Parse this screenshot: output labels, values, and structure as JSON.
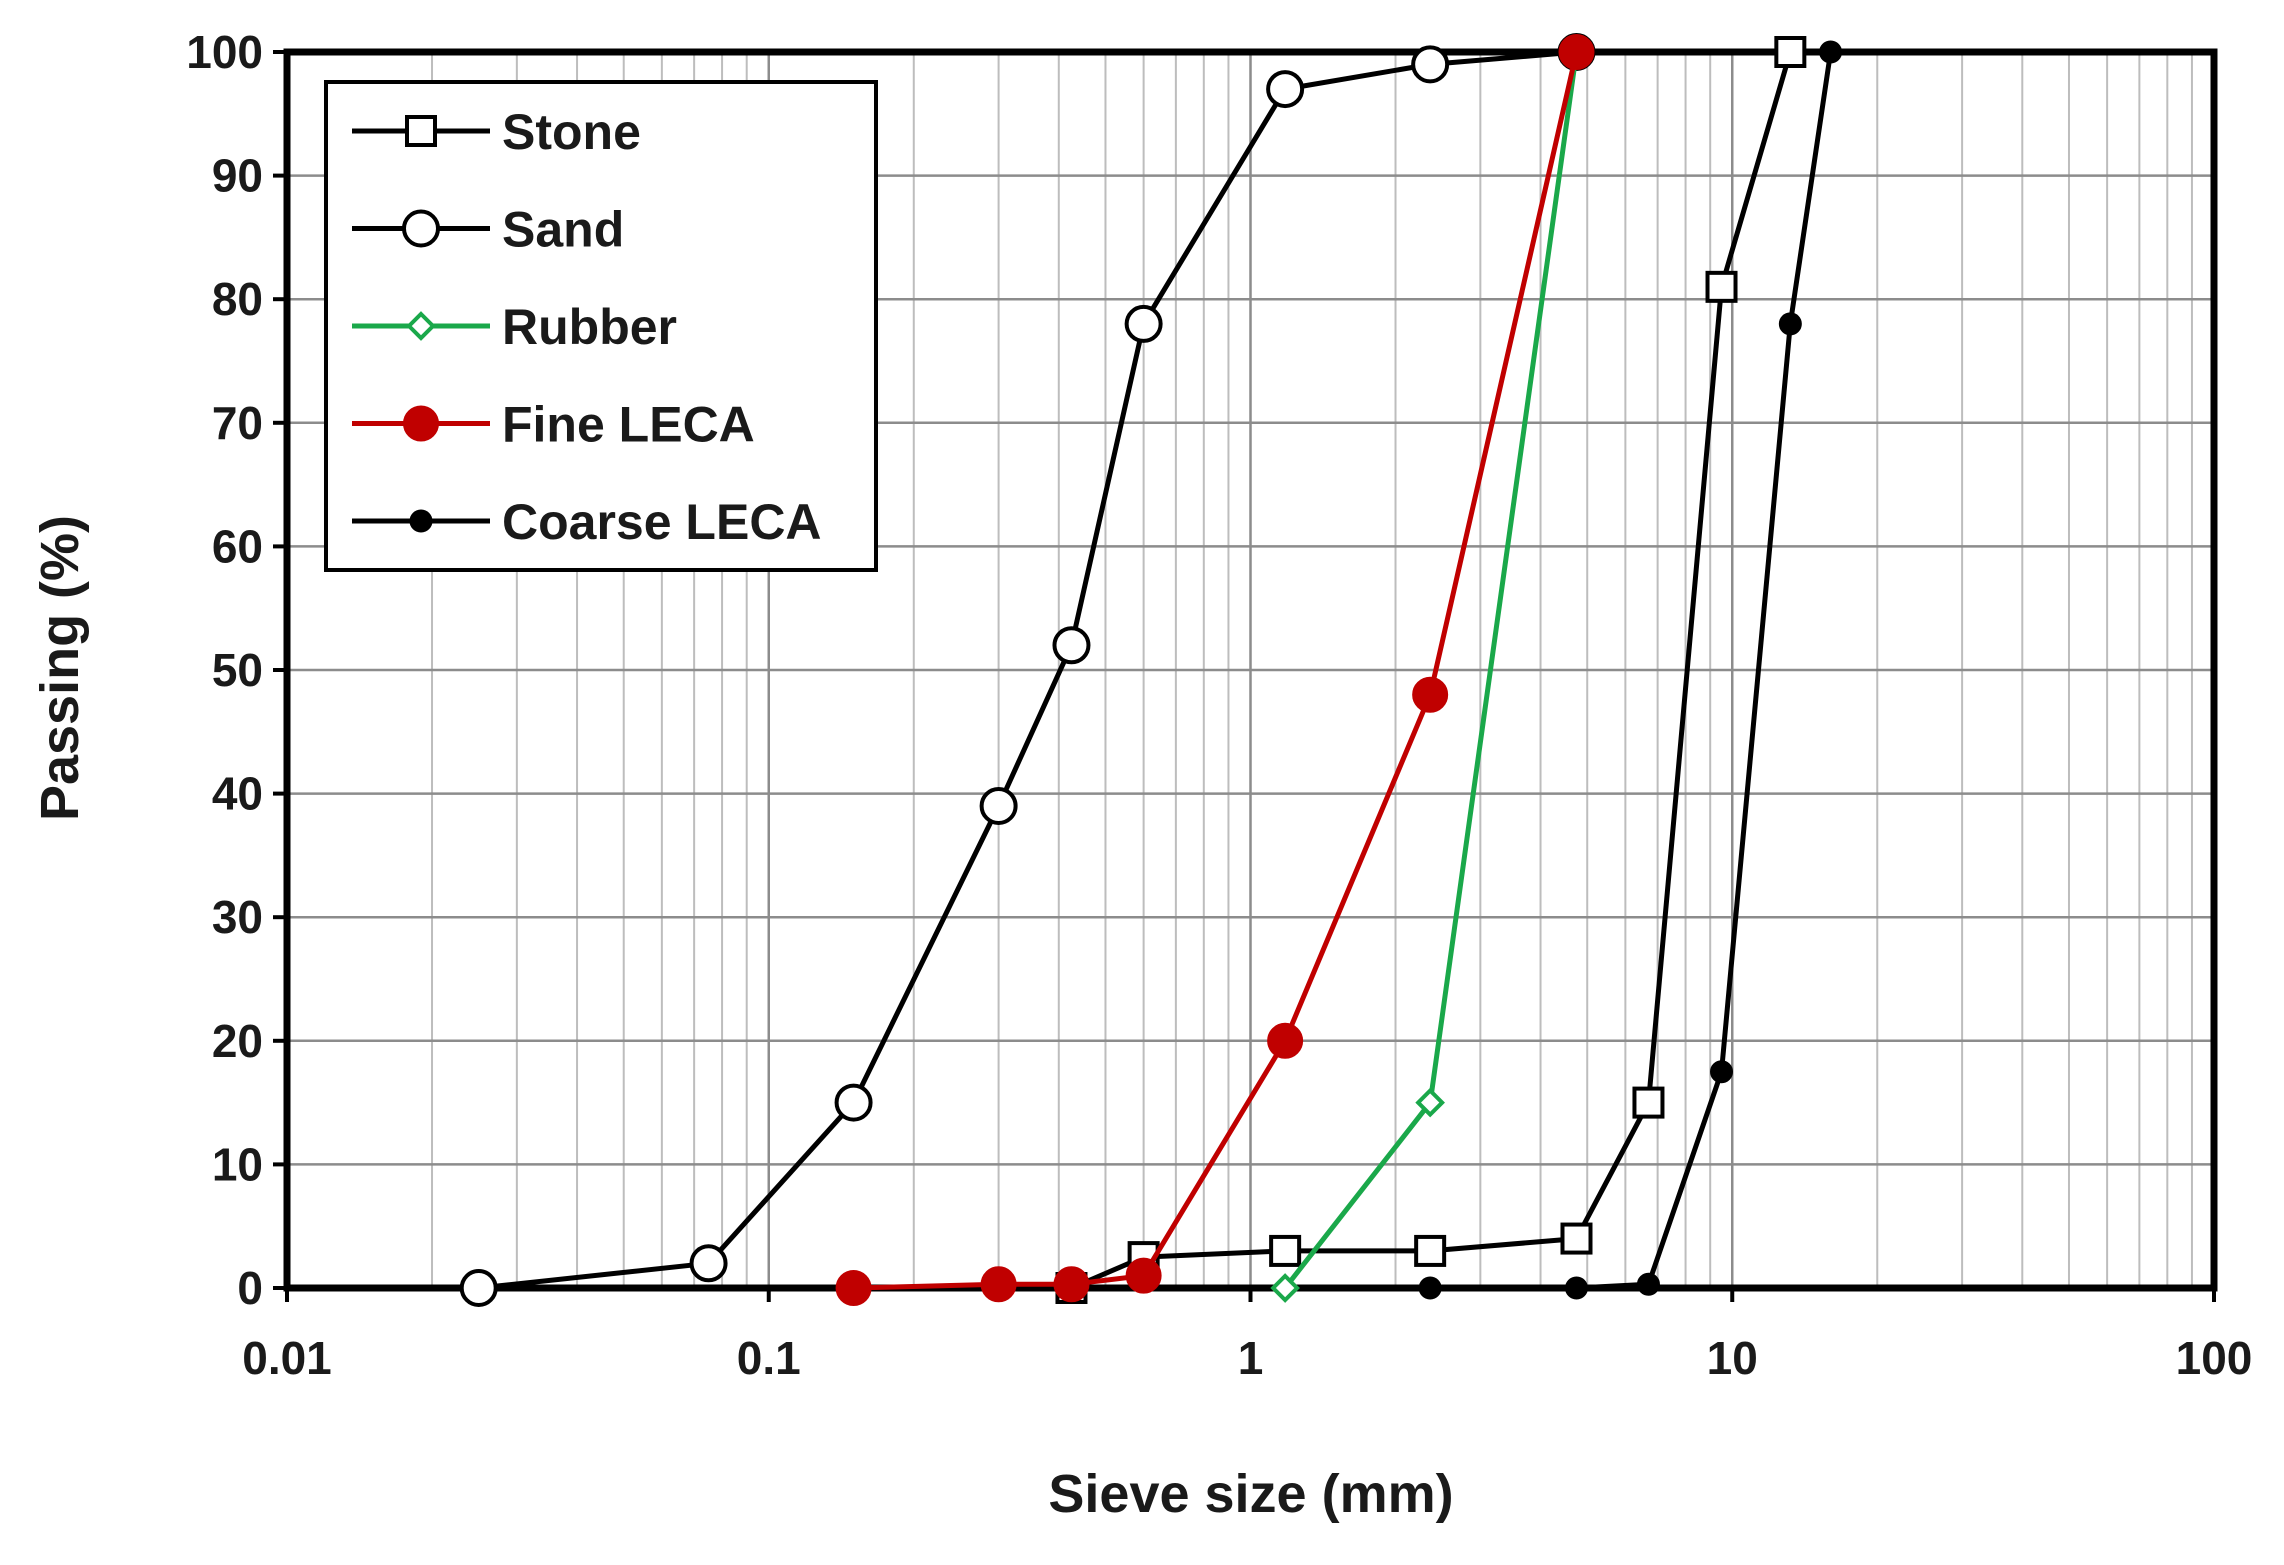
{
  "chart_data": {
    "type": "scatter",
    "title": "",
    "xlabel": "Sieve size (mm)",
    "ylabel": "Passing (%)",
    "xscale": "log",
    "xlim": [
      0.01,
      100
    ],
    "ylim": [
      0,
      100
    ],
    "grid": true,
    "legend_position": "top-left",
    "x_tick_labels": [
      "0.01",
      "0.1",
      "1",
      "10",
      "100"
    ],
    "y_tick_labels": [
      "0",
      "10",
      "20",
      "30",
      "40",
      "50",
      "60",
      "70",
      "80",
      "90",
      "100"
    ],
    "series": [
      {
        "name": "Stone",
        "color": "#000000",
        "marker": "square-open",
        "x": [
          0.425,
          0.6,
          1.18,
          2.36,
          4.75,
          6.7,
          9.5,
          13.2
        ],
        "y": [
          0,
          2.5,
          3,
          3,
          4,
          15,
          81,
          100
        ]
      },
      {
        "name": "Sand",
        "color": "#000000",
        "marker": "circle-open",
        "x": [
          0.025,
          0.075,
          0.15,
          0.3,
          0.425,
          0.6,
          1.18,
          2.36,
          4.75
        ],
        "y": [
          0,
          2,
          15,
          39,
          52,
          78,
          97,
          99,
          100
        ]
      },
      {
        "name": "Rubber",
        "color": "#1aa84a",
        "marker": "diamond-open",
        "x": [
          1.18,
          2.36,
          4.75
        ],
        "y": [
          0,
          15,
          100
        ]
      },
      {
        "name": "Fine LECA",
        "color": "#c00000",
        "marker": "circle-filled",
        "x": [
          0.15,
          0.3,
          0.425,
          0.6,
          1.18,
          2.36,
          4.75
        ],
        "y": [
          0,
          0.3,
          0.3,
          1,
          20,
          48,
          100
        ]
      },
      {
        "name": "Coarse LECA",
        "color": "#000000",
        "marker": "dot-filled",
        "x": [
          2.36,
          4.75,
          6.7,
          9.5,
          13.2,
          16
        ],
        "y": [
          0,
          0,
          0.3,
          17.5,
          78,
          100
        ]
      }
    ]
  }
}
